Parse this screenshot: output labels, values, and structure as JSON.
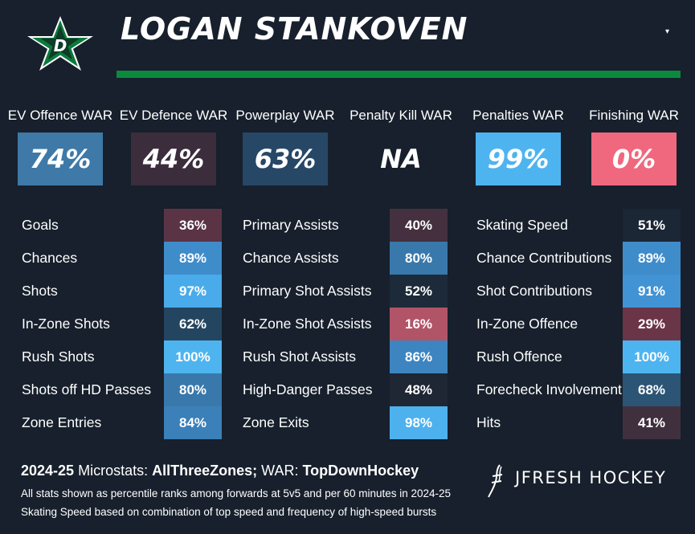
{
  "header": {
    "player_name": "LOGAN STANKOVEN",
    "logo_icon": "dallas-stars-logo-icon",
    "dropdown_glyph": "▾"
  },
  "war": [
    {
      "label": "EV Offence WAR",
      "value": "74%",
      "color": "#3e79a8"
    },
    {
      "label": "EV Defence WAR",
      "value": "44%",
      "color": "#3b2d3c"
    },
    {
      "label": "Powerplay WAR",
      "value": "63%",
      "color": "#274766"
    },
    {
      "label": "Penalty Kill WAR",
      "value": "NA",
      "color": "#17202c"
    },
    {
      "label": "Penalties WAR",
      "value": "99%",
      "color": "#4eb4f0"
    },
    {
      "label": "Finishing WAR",
      "value": "0%",
      "color": "#f0687e"
    }
  ],
  "stats": [
    [
      {
        "label": "Goals",
        "value": "36%",
        "color": "#5a3445"
      },
      {
        "label": "Chances",
        "value": "89%",
        "color": "#3f8ccb"
      },
      {
        "label": "Shots",
        "value": "97%",
        "color": "#4aabea"
      },
      {
        "label": "In-Zone Shots",
        "value": "62%",
        "color": "#244560"
      },
      {
        "label": "Rush Shots",
        "value": "100%",
        "color": "#4eb4f0"
      },
      {
        "label": "Shots off HD Passes",
        "value": "80%",
        "color": "#3978ab"
      },
      {
        "label": "Zone Entries",
        "value": "84%",
        "color": "#3b80b8"
      }
    ],
    [
      {
        "label": "Primary Assists",
        "value": "40%",
        "color": "#44303f"
      },
      {
        "label": "Chance Assists",
        "value": "80%",
        "color": "#3978ab"
      },
      {
        "label": "Primary Shot Assists",
        "value": "52%",
        "color": "#1d2a39"
      },
      {
        "label": "In-Zone Shot Assists",
        "value": "16%",
        "color": "#b25468"
      },
      {
        "label": "Rush Shot Assists",
        "value": "86%",
        "color": "#3d85c0"
      },
      {
        "label": "High-Danger Passes",
        "value": "48%",
        "color": "#1f2634"
      },
      {
        "label": "Zone Exits",
        "value": "98%",
        "color": "#4db1ee"
      }
    ],
    [
      {
        "label": "Skating Speed",
        "value": "51%",
        "color": "#1b2735"
      },
      {
        "label": "Chance Contributions",
        "value": "89%",
        "color": "#3f8ccb"
      },
      {
        "label": "Shot Contributions",
        "value": "91%",
        "color": "#4193d3"
      },
      {
        "label": "In-Zone Offence",
        "value": "29%",
        "color": "#6a3547"
      },
      {
        "label": "Rush Offence",
        "value": "100%",
        "color": "#4eb4f0"
      },
      {
        "label": "Forecheck Involvement",
        "value": "68%",
        "color": "#2c5475"
      },
      {
        "label": "Hits",
        "value": "41%",
        "color": "#40303e"
      }
    ]
  ],
  "footer": {
    "season": "2024-25",
    "microstats_prefix": "Microstats:",
    "microstats_source": "AllThreeZones;",
    "war_prefix": "WAR:",
    "war_source": "TopDownHockey",
    "note1": "All stats shown as percentile ranks among forwards at 5v5 and per 60 minutes in 2024-25",
    "note2": "Skating Speed based on combination of top speed and frequency of high-speed bursts",
    "brand": "JFRESH HOCKEY",
    "brand_icon": "jfresh-logo-icon"
  }
}
